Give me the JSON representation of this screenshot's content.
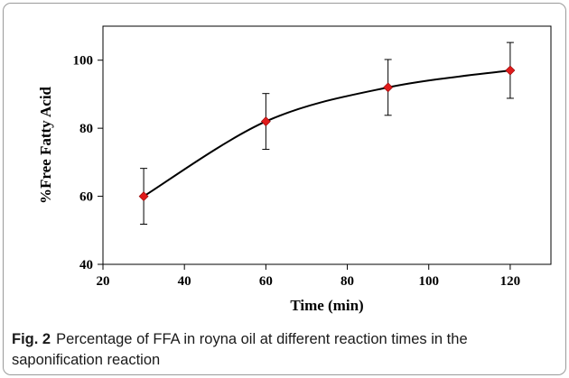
{
  "chart_data": {
    "type": "line",
    "title": "",
    "xlabel": "Time (min)",
    "ylabel": "%Free Fatty Acid",
    "xlim": [
      20,
      130
    ],
    "ylim": [
      40,
      110
    ],
    "x_ticks": [
      20,
      40,
      60,
      80,
      100,
      120
    ],
    "y_ticks": [
      40,
      60,
      80,
      100
    ],
    "grid": false,
    "legend": "none",
    "series": [
      {
        "x": [
          30,
          60,
          90,
          120
        ],
        "y": [
          60,
          82,
          92,
          97
        ],
        "error": [
          8.2,
          8.2,
          8.2,
          8.2
        ],
        "marker": "diamond",
        "marker_color": "#e01b1b",
        "line_color": "#000000",
        "smooth": true
      }
    ]
  },
  "caption": {
    "label": "Fig. 2",
    "text": "Percentage of FFA in royna oil at different reaction times in the saponification reaction"
  }
}
